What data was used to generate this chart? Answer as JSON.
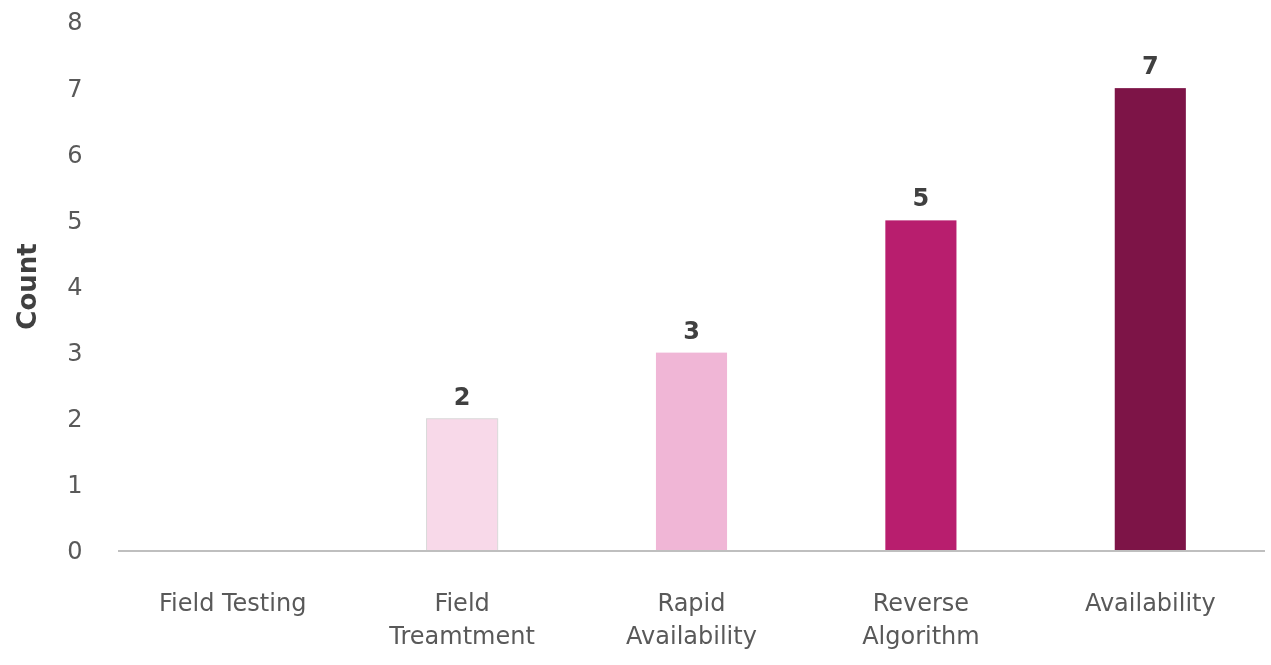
{
  "chart_data": {
    "type": "bar",
    "ylabel": "Count",
    "categories": [
      "Field Testing",
      "Field Treamtment",
      "Rapid Availability",
      "Reverse Algorithm",
      "Availability"
    ],
    "values": [
      0,
      2,
      3,
      5,
      7
    ],
    "colors": [
      "#f8d9e9",
      "#f8d9e9",
      "#f0b6d6",
      "#b81e6e",
      "#7d1447"
    ],
    "value_labels": [
      null,
      "2",
      "3",
      "5",
      "7"
    ],
    "ylim": [
      0,
      8
    ],
    "yticks": [
      0,
      1,
      2,
      3,
      4,
      5,
      6,
      7,
      8
    ]
  }
}
